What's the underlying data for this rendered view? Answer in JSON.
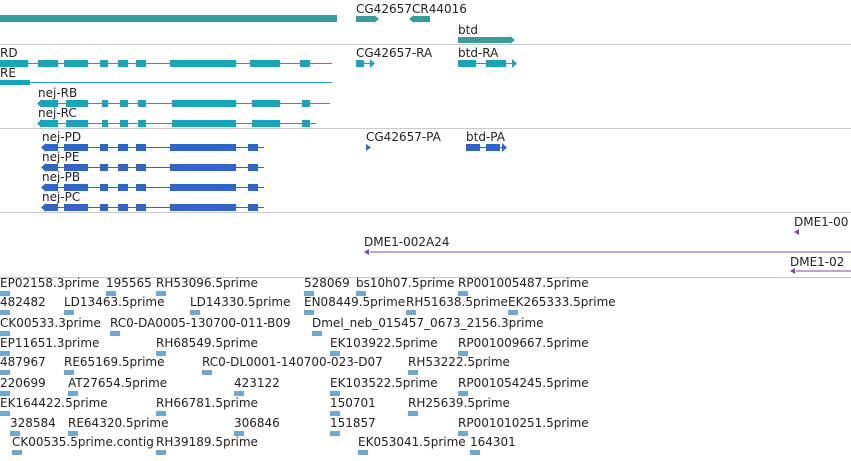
{
  "colors": {
    "gene": "#3c9a9a",
    "mrna": "#1aa4bc",
    "cds": "#2f64c8",
    "clone": "#7a4aa8",
    "est": "#6fa8d0",
    "divider": "#c8c8d0"
  },
  "tracks": {
    "genes": [
      {
        "label": "CG42657"
      },
      {
        "label": "CR44016"
      },
      {
        "label": "btd"
      }
    ],
    "transcripts": [
      {
        "label": "RD"
      },
      {
        "label": "RE"
      },
      {
        "label": "nej-RB"
      },
      {
        "label": "nej-RC"
      },
      {
        "label": "CG42657-RA"
      },
      {
        "label": "btd-RA"
      }
    ],
    "proteins": [
      {
        "label": "nej-PD"
      },
      {
        "label": "nej-PE"
      },
      {
        "label": "nej-PB"
      },
      {
        "label": "nej-PC"
      },
      {
        "label": "CG42657-PA"
      },
      {
        "label": "btd-PA"
      }
    ],
    "clones": [
      {
        "label": "DME1-00"
      },
      {
        "label": "DME1-002A24"
      },
      {
        "label": "DME1-02"
      }
    ],
    "ests": [
      {
        "label": "EP02158.3prime"
      },
      {
        "label": "195565"
      },
      {
        "label": "RH53096.5prime"
      },
      {
        "label": "528069"
      },
      {
        "label": "bs10h07.5prime"
      },
      {
        "label": "RP001005487.5prime"
      },
      {
        "label": "482482"
      },
      {
        "label": "LD13463.5prime"
      },
      {
        "label": "LD14330.5prime"
      },
      {
        "label": "EN08449.5prime"
      },
      {
        "label": "RH51638.5prime"
      },
      {
        "label": "EK265333.5prime"
      },
      {
        "label": "CK00533.3prime"
      },
      {
        "label": "RC0-DA0005-130700-011-B09"
      },
      {
        "label": "Dmel_neb_015457_0673_2156.3prime"
      },
      {
        "label": "EP11651.3prime"
      },
      {
        "label": "RH68549.5prime"
      },
      {
        "label": "EK103922.5prime"
      },
      {
        "label": "RP001009667.5prime"
      },
      {
        "label": "487967"
      },
      {
        "label": "RE65169.5prime"
      },
      {
        "label": "RC0-DL0001-140700-023-D07"
      },
      {
        "label": "RH53222.5prime"
      },
      {
        "label": "220699"
      },
      {
        "label": "AT27654.5prime"
      },
      {
        "label": "423122"
      },
      {
        "label": "EK103522.5prime"
      },
      {
        "label": "RP001054245.5prime"
      },
      {
        "label": "EK164422.5prime"
      },
      {
        "label": "RH66781.5prime"
      },
      {
        "label": "150701"
      },
      {
        "label": "RH25639.5prime"
      },
      {
        "label": "328584"
      },
      {
        "label": "RE64320.5prime"
      },
      {
        "label": "306846"
      },
      {
        "label": "151857"
      },
      {
        "label": "RP001010251.5prime"
      },
      {
        "label": "CK00535.5prime.contig"
      },
      {
        "label": "RH39189.5prime"
      },
      {
        "label": "EK053041.5prime"
      },
      {
        "label": "164301"
      }
    ]
  }
}
